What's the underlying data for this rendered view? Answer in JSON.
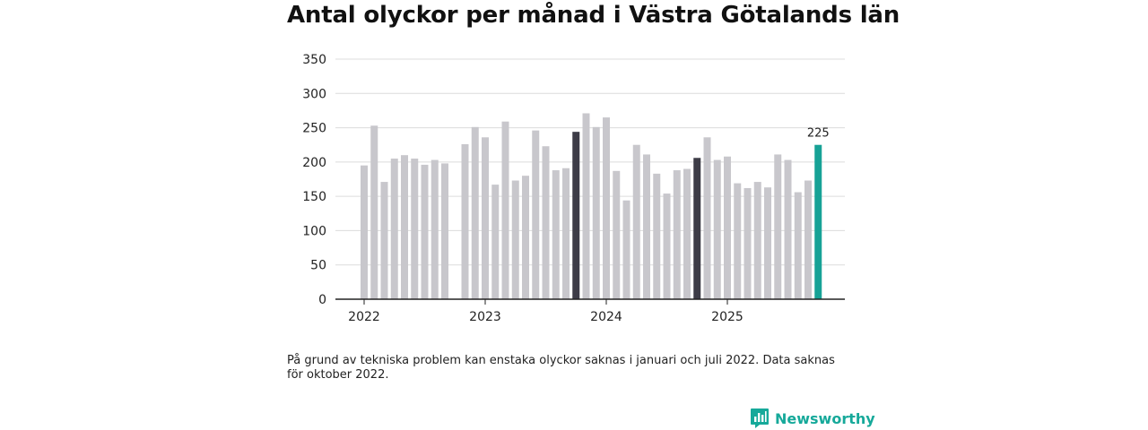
{
  "chart_data": {
    "type": "bar",
    "title": "Antal olyckor per månad i Västra Götalands län",
    "xlabel": "",
    "ylabel": "",
    "ylim": [
      0,
      350
    ],
    "yticks": [
      0,
      50,
      100,
      150,
      200,
      250,
      300,
      350
    ],
    "grid": true,
    "x_tick_labels": [
      {
        "label": "2022",
        "month_index": 0
      },
      {
        "label": "2023",
        "month_index": 12
      },
      {
        "label": "2024",
        "month_index": 24
      },
      {
        "label": "2025",
        "month_index": 36
      }
    ],
    "months": [
      "2022-01",
      "2022-02",
      "2022-03",
      "2022-04",
      "2022-05",
      "2022-06",
      "2022-07",
      "2022-08",
      "2022-09",
      "2022-10",
      "2022-11",
      "2022-12",
      "2023-01",
      "2023-02",
      "2023-03",
      "2023-04",
      "2023-05",
      "2023-06",
      "2023-07",
      "2023-08",
      "2023-09",
      "2023-10",
      "2023-11",
      "2023-12",
      "2024-01",
      "2024-02",
      "2024-03",
      "2024-04",
      "2024-05",
      "2024-06",
      "2024-07",
      "2024-08",
      "2024-09",
      "2024-10",
      "2024-11",
      "2024-12",
      "2025-01",
      "2025-02",
      "2025-03",
      "2025-04",
      "2025-05",
      "2025-06",
      "2025-07",
      "2025-08",
      "2025-09",
      "2025-10"
    ],
    "values": [
      195,
      253,
      171,
      205,
      210,
      205,
      196,
      203,
      198,
      null,
      226,
      251,
      236,
      167,
      259,
      173,
      180,
      246,
      223,
      188,
      191,
      244,
      271,
      251,
      265,
      187,
      144,
      225,
      211,
      183,
      154,
      188,
      190,
      206,
      236,
      203,
      208,
      169,
      162,
      171,
      163,
      211,
      203,
      156,
      173,
      225
    ],
    "highlighted_months": [
      "2023-10",
      "2024-10"
    ],
    "latest_month": "2025-10",
    "data_labels": [
      {
        "month": "2025-10",
        "text": "225"
      }
    ],
    "colors": {
      "default": "#c8c7cc",
      "highlight": "#3d3c47",
      "latest": "#17a296",
      "grid": "#dcdcdc",
      "axis": "#222222"
    }
  },
  "footnote": "På grund av tekniska problem kan enstaka olyckor saknas i januari och juli 2022. Data saknas för oktober 2022.",
  "brand": {
    "name": "Newsworthy",
    "icon": "newsworthy-logo-icon",
    "color": "#16a99a"
  }
}
